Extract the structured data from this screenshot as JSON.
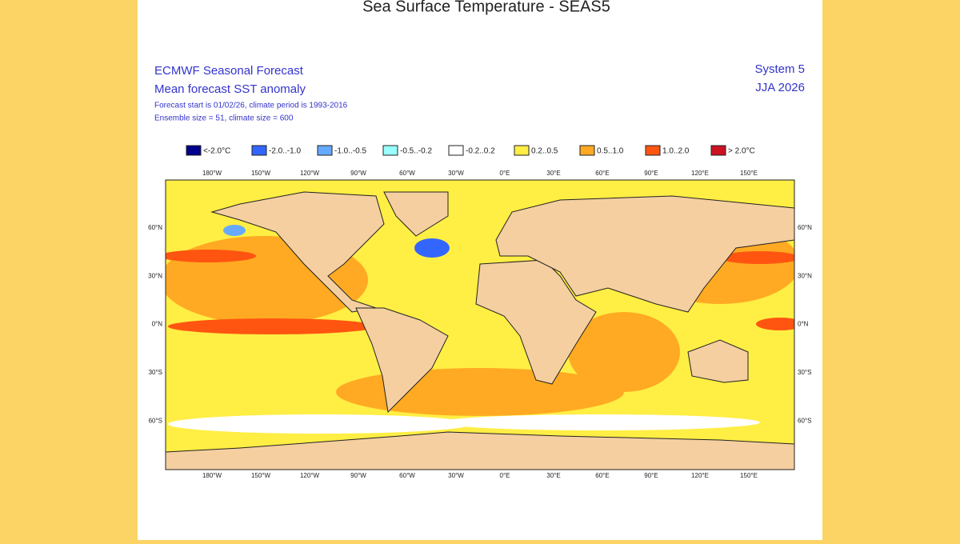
{
  "title": "Sea Surface Temperature - SEAS5",
  "header": {
    "org": "ECMWF Seasonal Forecast",
    "product": "Mean forecast SST anomaly",
    "forecast_info": "Forecast start is 01/02/26, climate period is 1993-2016",
    "ensemble_info": "Ensemble size = 51, climate size = 600",
    "system": "System 5",
    "period": "JJA 2026"
  },
  "legend": [
    {
      "label": "<-2.0°C",
      "color": "#00008b"
    },
    {
      "label": "-2.0..-1.0",
      "color": "#3366ff"
    },
    {
      "label": "-1.0..-0.5",
      "color": "#66aaff"
    },
    {
      "label": "-0.5..-0.2",
      "color": "#99ffff"
    },
    {
      "label": "-0.2..0.2",
      "color": "#ffffff"
    },
    {
      "label": "0.2..0.5",
      "color": "#ffee44"
    },
    {
      "label": "0.5..1.0",
      "color": "#ffaa22"
    },
    {
      "label": "1.0..2.0",
      "color": "#ff5511"
    },
    {
      "label": "> 2.0°C",
      "color": "#cc1122"
    }
  ],
  "map": {
    "lon_labels": [
      "180°W",
      "150°W",
      "120°W",
      "90°W",
      "60°W",
      "30°W",
      "0°E",
      "30°E",
      "60°E",
      "90°E",
      "120°E",
      "150°E"
    ],
    "lat_labels": [
      "60°N",
      "30°N",
      "0°N",
      "30°S",
      "60°S"
    ]
  }
}
